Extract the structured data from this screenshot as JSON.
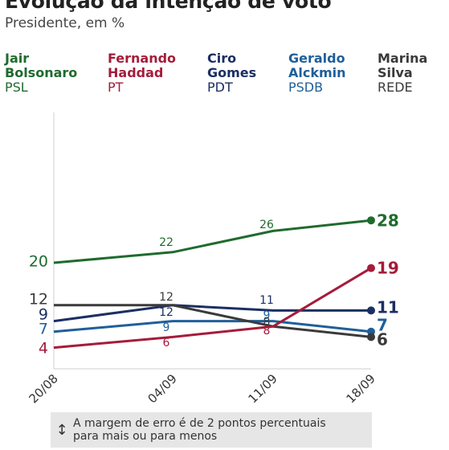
{
  "header": {
    "title": "Evolução da intenção de voto",
    "subtitle": "Presidente, em %"
  },
  "legend": [
    {
      "name": "Jair Bolsonaro",
      "line1": "Jair",
      "line2": "Bolsonaro",
      "party": "PSL",
      "color": "#1f6b2e"
    },
    {
      "name": "Fernando Haddad",
      "line1": "Fernando",
      "line2": "Haddad",
      "party": "PT",
      "color": "#a51c3a"
    },
    {
      "name": "Ciro Gomes",
      "line1": "Ciro",
      "line2": "Gomes",
      "party": "PDT",
      "color": "#1b2f63"
    },
    {
      "name": "Geraldo Alckmin",
      "line1": "Geraldo",
      "line2": "Alckmin",
      "party": "PSDB",
      "color": "#1f5f9a"
    },
    {
      "name": "Marina Silva",
      "line1": "Marina",
      "line2": "Silva",
      "party": "REDE",
      "color": "#3a3a3a"
    }
  ],
  "chart_data": {
    "type": "line",
    "title": "Evolução da intenção de voto",
    "subtitle": "Presidente, em %",
    "categories": [
      "20/08",
      "04/09",
      "11/09",
      "18/09"
    ],
    "ylim": [
      0,
      34
    ],
    "grid": false,
    "legend_position": "top",
    "series": [
      {
        "name": "Jair Bolsonaro",
        "color": "#1f6b2e",
        "values": [
          20,
          22,
          26,
          28
        ],
        "labels": [
          "20",
          "22",
          "26",
          "28"
        ]
      },
      {
        "name": "Fernando Haddad",
        "color": "#a51c3a",
        "values": [
          4,
          6,
          8,
          19
        ],
        "labels": [
          "4",
          "6",
          "8",
          "19"
        ]
      },
      {
        "name": "Ciro Gomes",
        "color": "#1b2f63",
        "values": [
          9,
          12,
          11,
          11
        ],
        "labels": [
          "9",
          "12",
          "11",
          "11"
        ]
      },
      {
        "name": "Geraldo Alckmin",
        "color": "#1f5f9a",
        "values": [
          7,
          9,
          9,
          7
        ],
        "labels": [
          "7",
          "9",
          "9",
          "7"
        ]
      },
      {
        "name": "Marina Silva",
        "color": "#3a3a3a",
        "values": [
          12,
          12,
          8,
          6
        ],
        "labels": [
          "12",
          "12",
          "8",
          "6"
        ]
      }
    ]
  },
  "footer": {
    "note_icon": "vertical-double-arrow-icon",
    "note_line1": "A margem de erro é de 2 pontos percentuais",
    "note_line2": "para mais ou para menos"
  }
}
